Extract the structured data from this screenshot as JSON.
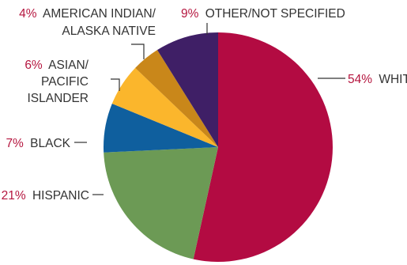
{
  "chart_data": {
    "type": "pie",
    "title": "",
    "unit": "%",
    "start_angle_deg": 0,
    "direction": "clockwise",
    "slices": [
      {
        "label": "WHITE",
        "value": 54,
        "pct_text": "54%",
        "color": "#b30b42"
      },
      {
        "label": "HISPANIC",
        "value": 21,
        "pct_text": "21%",
        "color": "#6c9a55"
      },
      {
        "label": "BLACK",
        "value": 7,
        "pct_text": "7%",
        "color": "#0f5f9e"
      },
      {
        "label_lines": [
          "ASIAN/",
          "PACIFIC",
          "ISLANDER"
        ],
        "value": 6,
        "pct_text": "6%",
        "color": "#fbb62c"
      },
      {
        "label_lines": [
          "AMERICAN INDIAN/",
          "ALASKA NATIVE"
        ],
        "value": 4,
        "pct_text": "4%",
        "color": "#c9871a"
      },
      {
        "label": "OTHER/NOT SPECIFIED",
        "value": 9,
        "pct_text": "9%",
        "color": "#3f1f66"
      }
    ]
  }
}
